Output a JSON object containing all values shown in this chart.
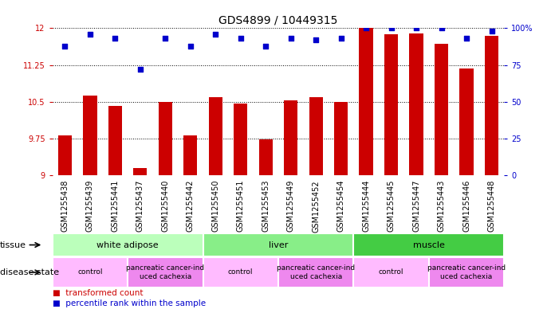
{
  "title": "GDS4899 / 10449315",
  "samples": [
    "GSM1255438",
    "GSM1255439",
    "GSM1255441",
    "GSM1255437",
    "GSM1255440",
    "GSM1255442",
    "GSM1255450",
    "GSM1255451",
    "GSM1255453",
    "GSM1255449",
    "GSM1255452",
    "GSM1255454",
    "GSM1255444",
    "GSM1255445",
    "GSM1255447",
    "GSM1255443",
    "GSM1255446",
    "GSM1255448"
  ],
  "bar_values": [
    9.82,
    10.62,
    10.42,
    9.15,
    10.5,
    9.82,
    10.6,
    10.47,
    9.73,
    10.53,
    10.6,
    10.5,
    12.0,
    11.88,
    11.9,
    11.68,
    11.18,
    11.85
  ],
  "dot_values": [
    88,
    96,
    93,
    72,
    93,
    88,
    96,
    93,
    88,
    93,
    92,
    93,
    100,
    100,
    100,
    100,
    93,
    98
  ],
  "bar_color": "#cc0000",
  "dot_color": "#0000cc",
  "ylim_left": [
    9.0,
    12.0
  ],
  "ylim_right": [
    0,
    100
  ],
  "yticks_left": [
    9.0,
    9.75,
    10.5,
    11.25,
    12.0
  ],
  "yticks_right": [
    0,
    25,
    50,
    75,
    100
  ],
  "ytick_labels_left": [
    "9",
    "9.75",
    "10.5",
    "11.25",
    "12"
  ],
  "ytick_labels_right": [
    "0",
    "25",
    "50",
    "75",
    "100%"
  ],
  "tissue_groups": [
    {
      "label": "white adipose",
      "start": 0,
      "end": 6,
      "color": "#bbffbb"
    },
    {
      "label": "liver",
      "start": 6,
      "end": 12,
      "color": "#88ee88"
    },
    {
      "label": "muscle",
      "start": 12,
      "end": 18,
      "color": "#44cc44"
    }
  ],
  "disease_groups": [
    {
      "label": "control",
      "start": 0,
      "end": 3,
      "color": "#ffbbff"
    },
    {
      "label": "pancreatic cancer-ind\nuced cachexia",
      "start": 3,
      "end": 6,
      "color": "#ee88ee"
    },
    {
      "label": "control",
      "start": 6,
      "end": 9,
      "color": "#ffbbff"
    },
    {
      "label": "pancreatic cancer-ind\nuced cachexia",
      "start": 9,
      "end": 12,
      "color": "#ee88ee"
    },
    {
      "label": "control",
      "start": 12,
      "end": 15,
      "color": "#ffbbff"
    },
    {
      "label": "pancreatic cancer-ind\nuced cachexia",
      "start": 15,
      "end": 18,
      "color": "#ee88ee"
    }
  ],
  "tissue_row_label": "tissue",
  "disease_row_label": "disease state",
  "legend_bar_label": "transformed count",
  "legend_dot_label": "percentile rank within the sample",
  "bar_width": 0.55,
  "tick_label_fontsize": 7.0,
  "xticklabel_fontsize": 7.0,
  "annot_fontsize": 8.0,
  "title_fontsize": 10
}
